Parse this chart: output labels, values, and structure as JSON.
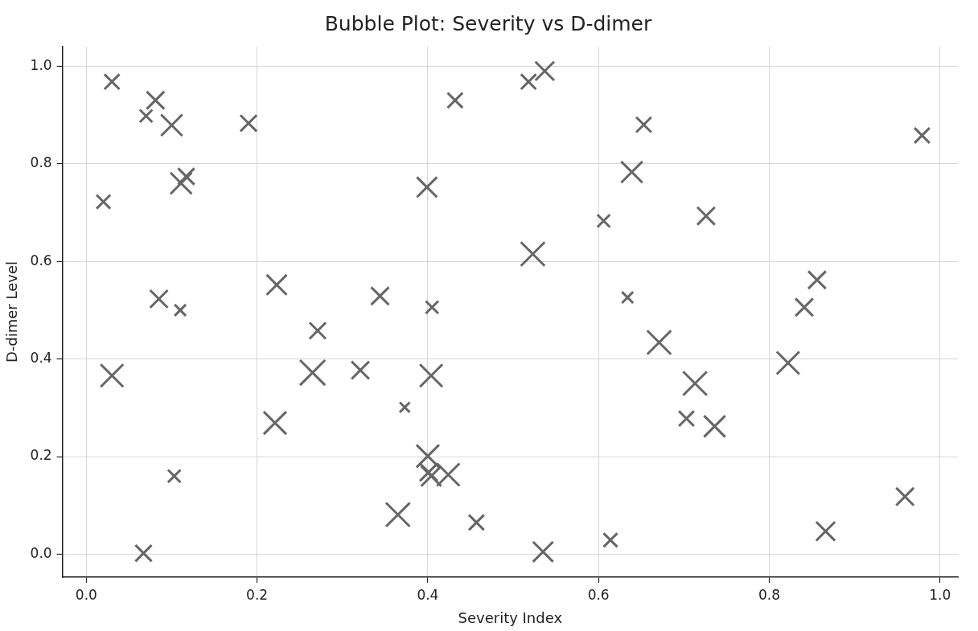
{
  "chart_data": {
    "type": "bubble",
    "title": "Bubble Plot: Severity vs D-dimer",
    "xlabel": "Severity Index",
    "ylabel": "D-dimer Level",
    "x": [
      0.03,
      0.081,
      0.07,
      0.1,
      0.19,
      0.02,
      0.111,
      0.117,
      0.399,
      0.432,
      0.223,
      0.344,
      0.085,
      0.405,
      0.11,
      0.518,
      0.537,
      0.653,
      0.979,
      0.639,
      0.606,
      0.726,
      0.523,
      0.634,
      0.856,
      0.841,
      0.822,
      0.671,
      0.713,
      0.703,
      0.736,
      0.959,
      0.866,
      0.614,
      0.535,
      0.271,
      0.03,
      0.265,
      0.321,
      0.404,
      0.373,
      0.221,
      0.4,
      0.401,
      0.404,
      0.424,
      0.103,
      0.365,
      0.457,
      0.067
    ],
    "values": [
      0.968,
      0.93,
      0.898,
      0.879,
      0.883,
      0.722,
      0.76,
      0.774,
      0.752,
      0.93,
      0.552,
      0.529,
      0.523,
      0.506,
      0.5,
      0.968,
      0.99,
      0.88,
      0.858,
      0.783,
      0.683,
      0.693,
      0.615,
      0.526,
      0.562,
      0.506,
      0.392,
      0.434,
      0.35,
      0.278,
      0.262,
      0.118,
      0.047,
      0.029,
      0.005,
      0.458,
      0.366,
      0.372,
      0.377,
      0.366,
      0.301,
      0.269,
      0.201,
      0.168,
      0.16,
      0.163,
      0.16,
      0.081,
      0.065,
      0.002
    ],
    "sizes": [
      0.36,
      0.49,
      0.25,
      0.72,
      0.42,
      0.3,
      0.72,
      0.42,
      0.64,
      0.36,
      0.64,
      0.49,
      0.49,
      0.25,
      0.2,
      0.36,
      0.56,
      0.36,
      0.36,
      0.72,
      0.25,
      0.49,
      0.9,
      0.2,
      0.49,
      0.49,
      0.81,
      0.9,
      0.9,
      0.36,
      0.72,
      0.49,
      0.56,
      0.3,
      0.64,
      0.42,
      0.81,
      1,
      0.49,
      0.81,
      0.16,
      0.81,
      0.81,
      0.49,
      0.64,
      0.81,
      0.25,
      0.9,
      0.36,
      0.42
    ],
    "color": "#666666",
    "marker": "cross",
    "xlim": [
      -0.028,
      1.021
    ],
    "ylim": [
      -0.047,
      1.04
    ],
    "xticks": [
      {
        "value": 0,
        "label": "0.0"
      },
      0.2,
      0.4,
      0.6,
      0.8,
      {
        "value": 1,
        "label": "1.0"
      }
    ],
    "yticks": [
      {
        "value": 0,
        "label": "0.0"
      },
      0.2,
      0.4,
      0.6,
      0.8,
      {
        "value": 1,
        "label": "1.0"
      }
    ],
    "grid": true
  }
}
